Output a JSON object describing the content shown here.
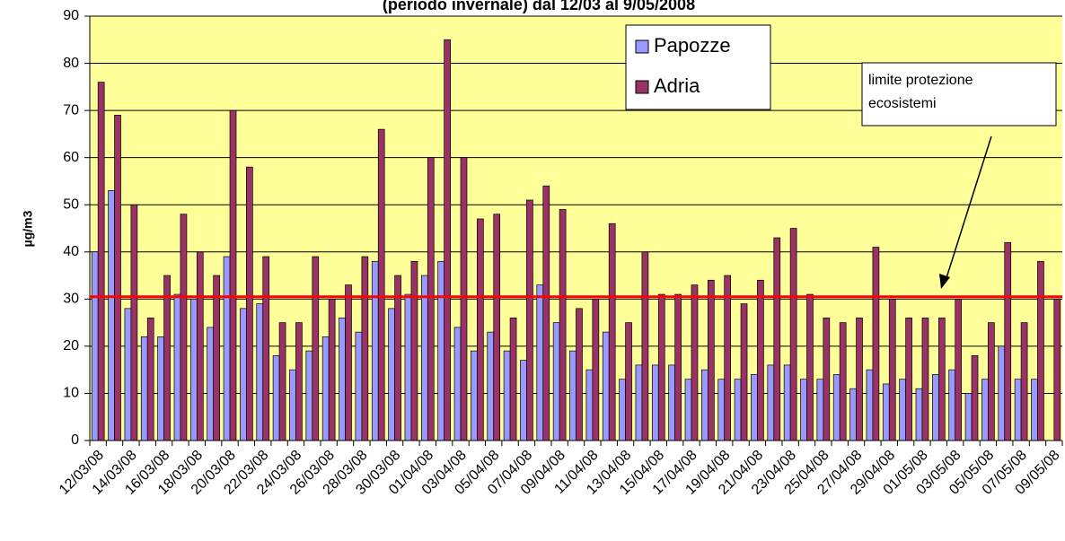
{
  "chart_data": {
    "type": "bar",
    "title": "(periodo invernale) dal 12/03 al 9/05/2008",
    "y_label": "µg/m3",
    "categories": [
      "12/03/08",
      null,
      "14/03/08",
      null,
      "16/03/08",
      null,
      "18/03/08",
      null,
      "20/03/08",
      null,
      "22/03/08",
      null,
      "24/03/08",
      null,
      "26/03/08",
      null,
      "28/03/08",
      null,
      "30/03/08",
      null,
      "01/04/08",
      null,
      "03/04/08",
      null,
      "05/04/08",
      null,
      "07/04/08",
      null,
      "09/04/08",
      null,
      "11/04/08",
      null,
      "13/04/08",
      null,
      "15/04/08",
      null,
      "17/04/08",
      null,
      "19/04/08",
      null,
      "21/04/08",
      null,
      "23/04/08",
      null,
      "25/04/08",
      null,
      "27/04/08",
      null,
      "29/04/08",
      null,
      "01/05/08",
      null,
      "03/05/08",
      null,
      "05/05/08",
      null,
      "07/05/08",
      null,
      "09/05/08"
    ],
    "series": [
      {
        "name": "Papozze",
        "color": "#9999ff",
        "values": [
          40,
          53,
          28,
          22,
          22,
          31,
          30,
          24,
          39,
          28,
          29,
          18,
          15,
          19,
          22,
          26,
          23,
          38,
          28,
          31,
          35,
          38,
          24,
          19,
          23,
          19,
          17,
          33,
          25,
          19,
          15,
          23,
          13,
          16,
          16,
          16,
          13,
          15,
          13,
          13,
          14,
          16,
          16,
          13,
          13,
          14,
          11,
          15,
          12,
          13,
          11,
          14,
          15,
          10,
          13,
          20,
          13,
          13,
          null
        ]
      },
      {
        "name": "Adria",
        "color": "#993366",
        "values": [
          76,
          69,
          50,
          26,
          35,
          48,
          40,
          35,
          70,
          58,
          39,
          25,
          25,
          39,
          30,
          33,
          39,
          66,
          35,
          38,
          60,
          85,
          60,
          47,
          48,
          26,
          51,
          54,
          49,
          28,
          30,
          46,
          25,
          40,
          31,
          31,
          33,
          34,
          35,
          29,
          34,
          43,
          45,
          31,
          26,
          25,
          26,
          41,
          30,
          26,
          26,
          26,
          30,
          18,
          25,
          42,
          25,
          38,
          30
        ]
      }
    ],
    "ylim": [
      0,
      90
    ],
    "yticks": [
      0,
      10,
      20,
      30,
      40,
      50,
      60,
      70,
      80,
      90
    ],
    "grid": true,
    "reference_line": {
      "value": 30.5,
      "color": "#ff0000"
    },
    "annotation": [
      "limite protezione",
      "ecosistemi"
    ]
  }
}
